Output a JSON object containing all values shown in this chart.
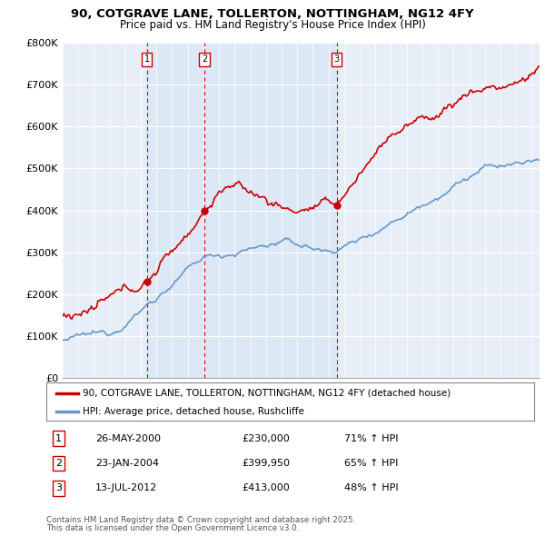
{
  "title": "90, COTGRAVE LANE, TOLLERTON, NOTTINGHAM, NG12 4FY",
  "subtitle": "Price paid vs. HM Land Registry's House Price Index (HPI)",
  "ylim": [
    0,
    800000
  ],
  "yticks": [
    0,
    100000,
    200000,
    300000,
    400000,
    500000,
    600000,
    700000,
    800000
  ],
  "ytick_labels": [
    "£0",
    "£100K",
    "£200K",
    "£300K",
    "£400K",
    "£500K",
    "£600K",
    "£700K",
    "£800K"
  ],
  "background_color": "#ffffff",
  "plot_bg_color": "#e8eef8",
  "grid_color": "#ffffff",
  "sale_color": "#cc0000",
  "hpi_color": "#6699cc",
  "shade_color": "#dce8f5",
  "sale_label": "90, COTGRAVE LANE, TOLLERTON, NOTTINGHAM, NG12 4FY (detached house)",
  "hpi_label": "HPI: Average price, detached house, Rushcliffe",
  "transactions": [
    {
      "label": "1",
      "date_str": "26-MAY-2000",
      "price": 230000,
      "pct": "71%",
      "x": 2000.38
    },
    {
      "label": "2",
      "date_str": "23-JAN-2004",
      "price": 399950,
      "pct": "65%",
      "x": 2004.06
    },
    {
      "label": "3",
      "date_str": "13-JUL-2012",
      "price": 413000,
      "pct": "48%",
      "x": 2012.53
    }
  ],
  "footer_line1": "Contains HM Land Registry data © Crown copyright and database right 2025.",
  "footer_line2": "This data is licensed under the Open Government Licence v3.0.",
  "xlim_start": 1995,
  "xlim_end": 2025.5
}
